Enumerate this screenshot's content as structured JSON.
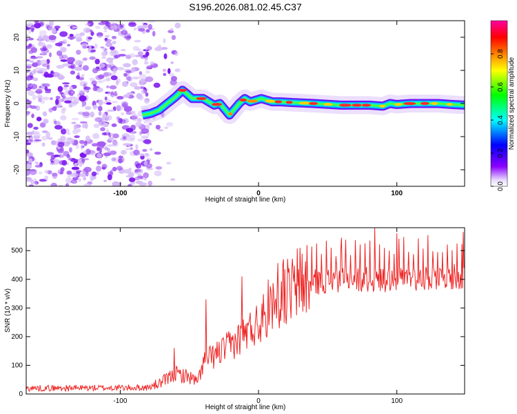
{
  "title": "S196.2026.081.02.45.C37",
  "colors": {
    "snr_line": "#ee2222",
    "trace_colorscale": [
      "#ffffff",
      "#d8b8ff",
      "#7f00ff",
      "#0000ff",
      "#00ffff",
      "#00ff00",
      "#ffff00",
      "#ff8000",
      "#ff0000",
      "#ff00a0"
    ]
  },
  "chart_data": [
    {
      "type": "heatmap",
      "title": "S196.2026.081.02.45.C37",
      "xlabel": "Height of straight line (km)",
      "ylabel": "Frequency (Hz)",
      "xlim": [
        -168,
        149
      ],
      "ylim": [
        -25,
        25
      ],
      "xticks": [
        {
          "value": -100,
          "label": "-100"
        },
        {
          "value": 0,
          "label": "0"
        },
        {
          "value": 100,
          "label": "100"
        }
      ],
      "yticks": [
        {
          "value": -20,
          "label": "-20"
        },
        {
          "value": -10,
          "label": "-10"
        },
        {
          "value": 0,
          "label": "0"
        },
        {
          "value": 10,
          "label": "10"
        },
        {
          "value": 20,
          "label": "20"
        }
      ],
      "colorbar": {
        "label": "Normalized spectral amplitude",
        "range": [
          0,
          1
        ],
        "ticks": [
          {
            "value": 0.0,
            "label": "0.0"
          },
          {
            "value": 0.2,
            "label": "0.2"
          },
          {
            "value": 0.4,
            "label": "0.4"
          },
          {
            "value": 0.6,
            "label": "0.6"
          },
          {
            "value": 0.8,
            "label": "0.8"
          }
        ]
      },
      "trace": {
        "x": [
          -84,
          -78,
          -72,
          -66,
          -60,
          -55,
          -52,
          -48,
          -44,
          -40,
          -36,
          -32,
          -28,
          -24,
          -21,
          -18,
          -14,
          -10,
          -6,
          -2,
          2,
          6,
          10,
          16,
          24,
          40,
          60,
          80,
          90,
          95,
          100,
          110,
          120,
          130,
          140,
          149
        ],
        "y": [
          -3.5,
          -3.0,
          -2.0,
          0.0,
          2.0,
          4.0,
          3.0,
          1.5,
          1.5,
          1.5,
          0.5,
          -0.5,
          0.0,
          -2.0,
          -3.5,
          -2.0,
          0.0,
          1.5,
          0.5,
          1.0,
          1.5,
          1.0,
          0.5,
          0.5,
          0.3,
          0.0,
          -0.5,
          -0.5,
          -0.8,
          0.0,
          -0.3,
          0.0,
          0.0,
          0.0,
          -0.3,
          -0.5
        ]
      },
      "noise_region_x": [
        -168,
        -78
      ]
    },
    {
      "type": "line",
      "xlabel": "Height of straight line (km)",
      "ylabel": "SNR (10 * v/v)",
      "xlim": [
        -168,
        149
      ],
      "ylim": [
        0,
        580
      ],
      "xticks": [
        {
          "value": -100,
          "label": "-100"
        },
        {
          "value": 0,
          "label": "0"
        },
        {
          "value": 100,
          "label": "100"
        }
      ],
      "yticks": [
        {
          "value": 0,
          "label": "0"
        },
        {
          "value": 100,
          "label": "100"
        },
        {
          "value": 200,
          "label": "200"
        },
        {
          "value": 300,
          "label": "300"
        },
        {
          "value": 400,
          "label": "400"
        },
        {
          "value": 500,
          "label": "500"
        }
      ],
      "series": [
        {
          "name": "SNR",
          "baseline": {
            "x": [
              -168,
              -80,
              -70,
              -60,
              -50,
              -44,
              -40,
              -30,
              -20,
              -10,
              0,
              10,
              20,
              30,
              40,
              60,
              80,
              100,
              120,
              149
            ],
            "y": [
              20,
              22,
              40,
              70,
              60,
              40,
              110,
              140,
              170,
              210,
              250,
              300,
              340,
              370,
              390,
              400,
              400,
              400,
              405,
              410
            ]
          },
          "spikes": [
            {
              "x": -61,
              "y": 160
            },
            {
              "x": -38,
              "y": 330
            },
            {
              "x": -12,
              "y": 410
            },
            {
              "x": 18,
              "y": 470
            },
            {
              "x": 30,
              "y": 510
            },
            {
              "x": 60,
              "y": 545
            },
            {
              "x": 84,
              "y": 580
            },
            {
              "x": 100,
              "y": 560
            },
            {
              "x": 148,
              "y": 565
            }
          ]
        }
      ]
    }
  ]
}
